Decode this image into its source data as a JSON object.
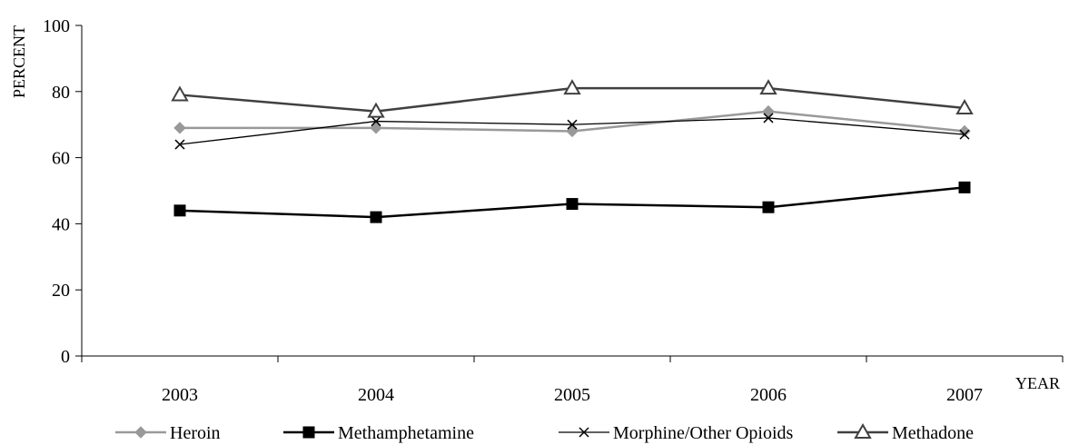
{
  "chart_data": {
    "type": "line",
    "title": "",
    "xlabel": "YEAR",
    "ylabel": "PERCENT",
    "categories": [
      "2003",
      "2004",
      "2005",
      "2006",
      "2007"
    ],
    "ylim": [
      0,
      100
    ],
    "yticks": [
      0,
      20,
      40,
      60,
      80,
      100
    ],
    "grid": false,
    "legend_position": "bottom",
    "series": [
      {
        "name": "Heroin",
        "values": [
          69,
          69,
          68,
          74,
          68
        ],
        "color": "#999999",
        "marker": "diamond"
      },
      {
        "name": "Methamphetamine",
        "values": [
          44,
          42,
          46,
          45,
          51
        ],
        "color": "#000000",
        "marker": "square"
      },
      {
        "name": "Morphine/Other Opioids",
        "values": [
          64,
          71,
          70,
          72,
          67
        ],
        "color": "#000000",
        "marker": "x"
      },
      {
        "name": "Methadone",
        "values": [
          79,
          74,
          81,
          81,
          75
        ],
        "color": "#404040",
        "marker": "triangle"
      }
    ]
  }
}
